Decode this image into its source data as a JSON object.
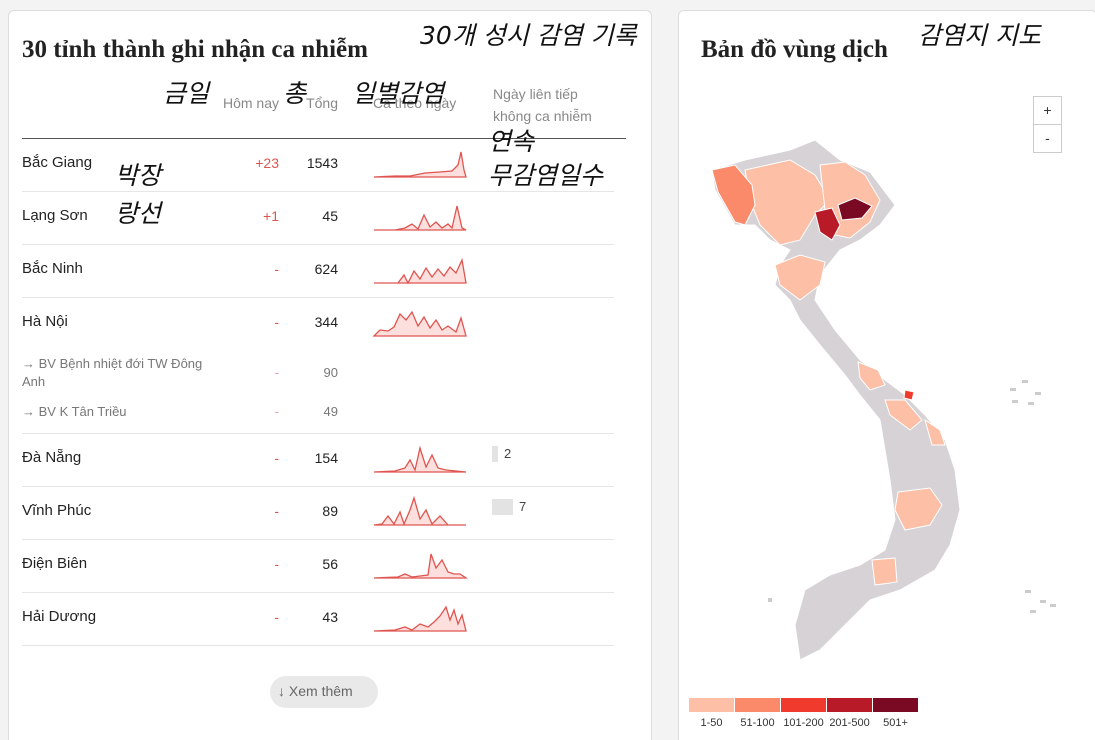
{
  "table": {
    "title": "30 tỉnh thành ghi nhận ca nhiễm",
    "columns": {
      "today": "Hôm nay",
      "total": "Tổng",
      "daily": "Ca theo ngày",
      "streak": "Ngày liên tiếp không ca nhiễm"
    },
    "rows": [
      {
        "name": "Bắc Giang",
        "today": "+23",
        "total": 1543
      },
      {
        "name": "Lạng Sơn",
        "today": "+1",
        "total": 45
      },
      {
        "name": "Bắc Ninh",
        "today": "-",
        "total": 624
      },
      {
        "name": "Hà Nội",
        "today": "-",
        "total": 344,
        "hospitals": [
          {
            "name": "→ BV Bệnh nhiệt đới TW Đông Anh",
            "today": "-",
            "total": 90
          },
          {
            "name": "→ BV K Tân Triều",
            "today": "-",
            "total": 49
          }
        ]
      },
      {
        "name": "Đà Nẵng",
        "today": "-",
        "total": 154,
        "streak": 2
      },
      {
        "name": "Vĩnh Phúc",
        "today": "-",
        "total": 89,
        "streak": 7
      },
      {
        "name": "Điện Biên",
        "today": "-",
        "total": 56
      },
      {
        "name": "Hải Dương",
        "today": "-",
        "total": 43
      }
    ],
    "more": "Xem thêm"
  },
  "map": {
    "title": "Bản đồ vùng dịch",
    "zoom_in": "+",
    "zoom_out": "-",
    "legend": [
      {
        "label": "1-50",
        "color": "#fdbfa5"
      },
      {
        "label": "51-100",
        "color": "#fb8a6a"
      },
      {
        "label": "101-200",
        "color": "#f03a2e"
      },
      {
        "label": "201-500",
        "color": "#b81a28"
      },
      {
        "label": "501+",
        "color": "#7a0a24"
      }
    ]
  },
  "annotations": [
    "30개 성시 감염 기록",
    "감염지 지도",
    "금일",
    "총",
    "일별감염",
    "연속",
    "무감염일수",
    "박장",
    "랑선"
  ]
}
